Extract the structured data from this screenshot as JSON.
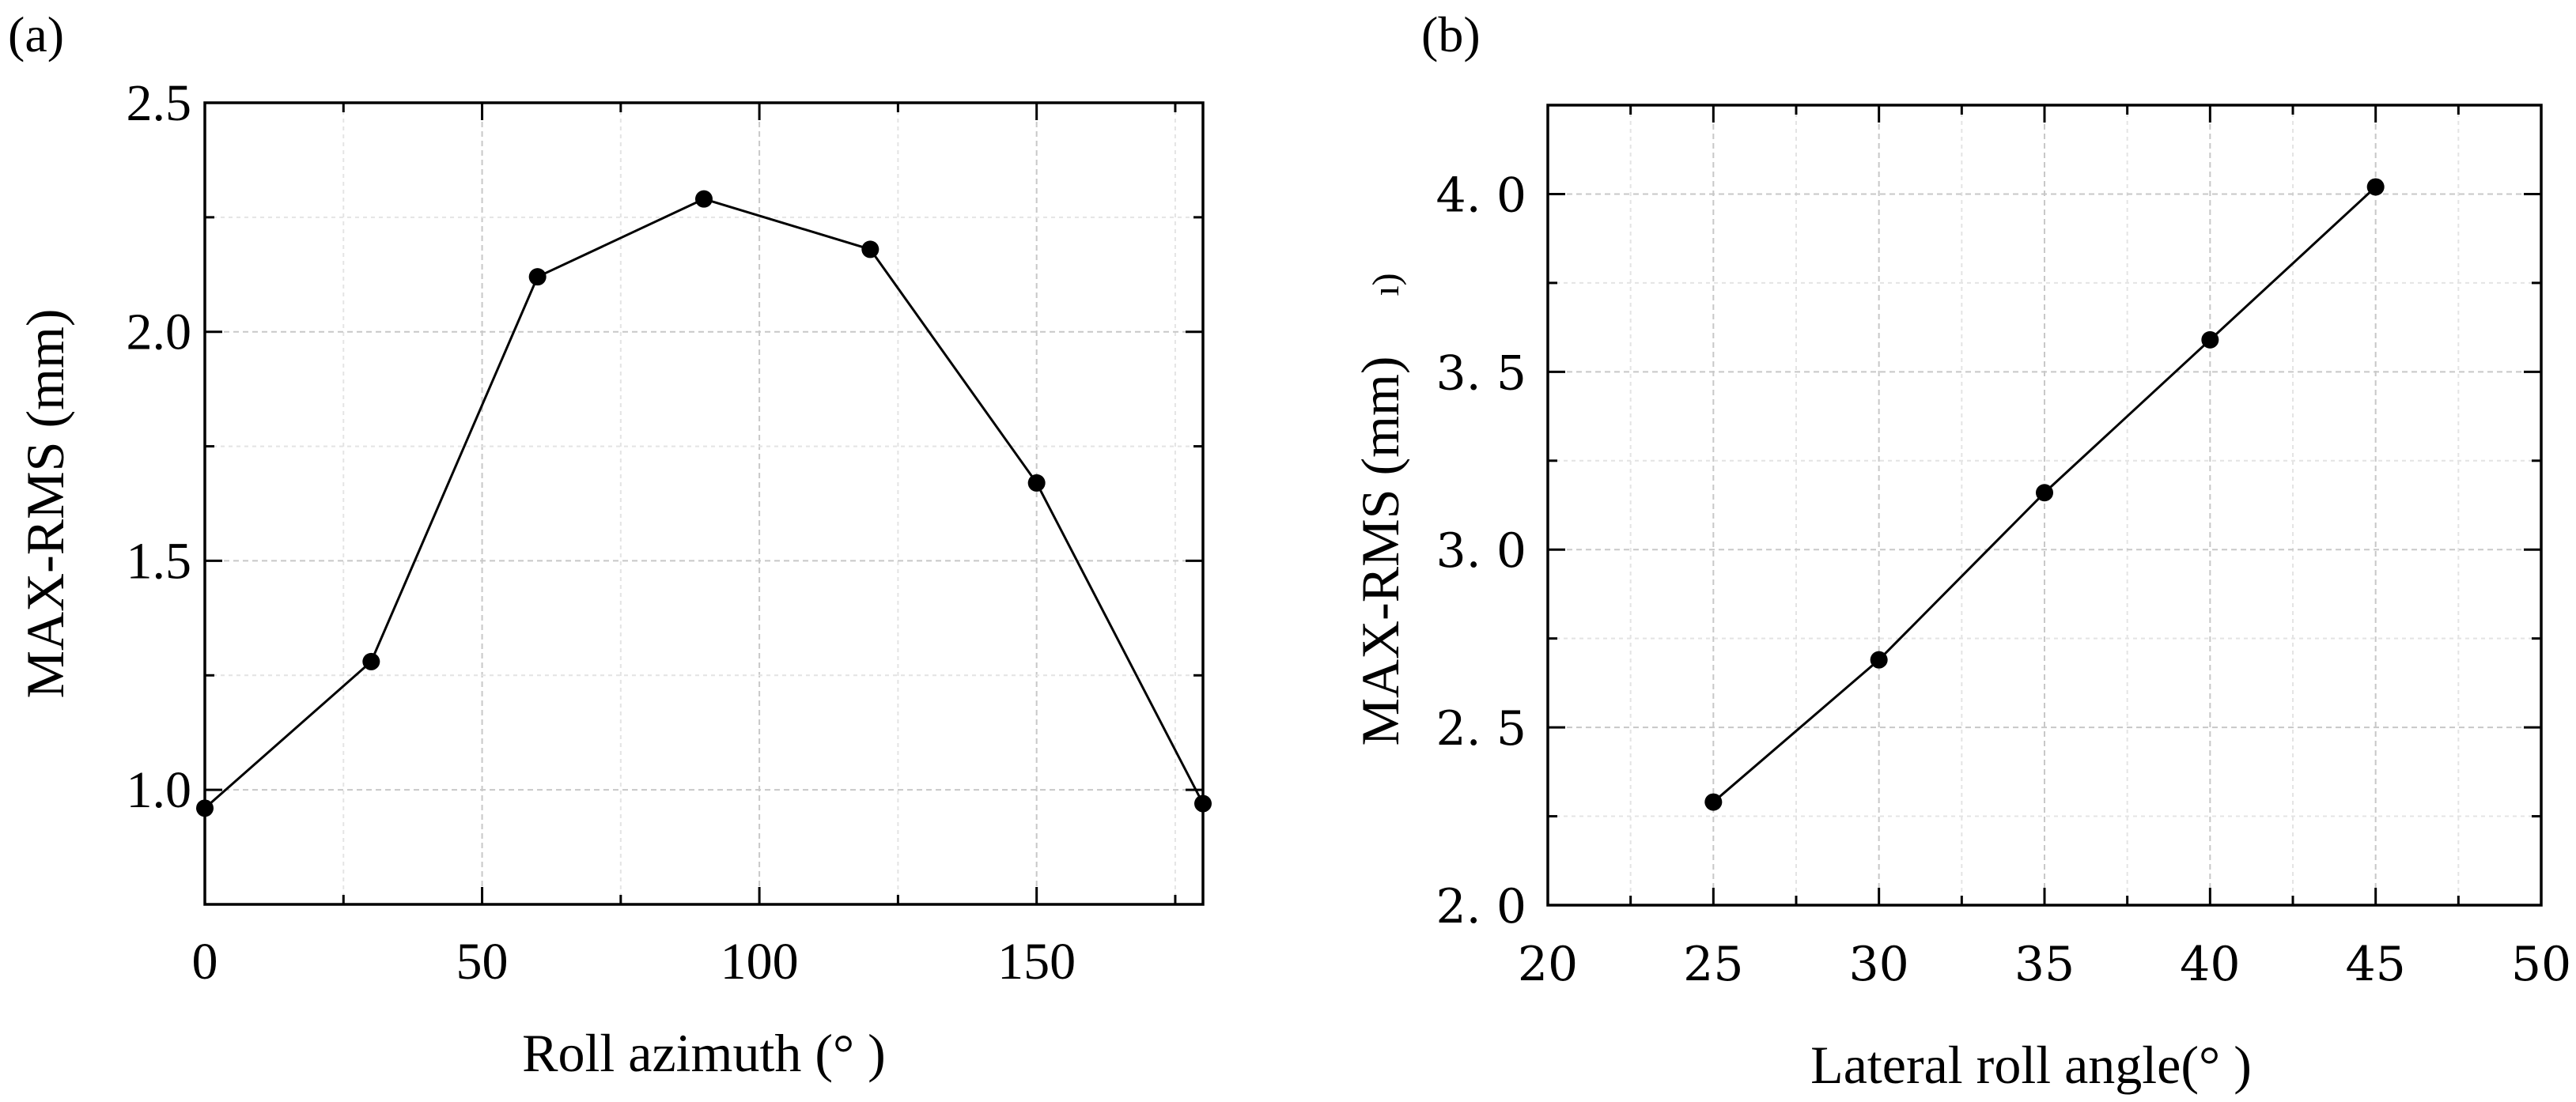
{
  "chart_data": [
    {
      "panel": "(a)",
      "type": "line",
      "title": "",
      "xlabel": "Roll azimuth (°  )",
      "ylabel": "MAX-RMS (mm)",
      "x": [
        0,
        30,
        60,
        90,
        120,
        150,
        180
      ],
      "series": [
        {
          "name": "MAX-RMS",
          "values": [
            0.96,
            1.28,
            2.12,
            2.29,
            2.18,
            1.67,
            0.97
          ]
        }
      ],
      "xlim": [
        0,
        180
      ],
      "ylim": [
        0.75,
        2.5
      ],
      "xticks": [
        0,
        50,
        100,
        150
      ],
      "yticks": [
        1.0,
        1.5,
        2.0,
        2.5
      ],
      "xtick_labels": [
        "0",
        "50",
        "100",
        "150"
      ],
      "ytick_labels": [
        "1.0",
        "1.5",
        "2.0",
        "2.5"
      ],
      "grid": true
    },
    {
      "panel": "(b)",
      "type": "line",
      "title": "",
      "xlabel": "Lateral roll angle(°  )",
      "ylabel": "MAX-RMS (mm)",
      "ylabel_artifact": "ı)",
      "x": [
        25,
        30,
        35,
        40,
        45
      ],
      "series": [
        {
          "name": "MAX-RMS",
          "values": [
            2.29,
            2.69,
            3.16,
            3.59,
            4.02
          ]
        }
      ],
      "xlim": [
        20,
        50
      ],
      "ylim": [
        2.0,
        4.25
      ],
      "xticks": [
        20,
        25,
        30,
        35,
        40,
        45,
        50
      ],
      "yticks": [
        2.0,
        2.5,
        3.0,
        3.5,
        4.0
      ],
      "xtick_labels": [
        "20",
        "25",
        "30",
        "35",
        "40",
        "45",
        "50"
      ],
      "ytick_labels": [
        "2. 0",
        "2. 5",
        "3. 0",
        "3. 5",
        "4. 0"
      ],
      "grid": true
    }
  ]
}
